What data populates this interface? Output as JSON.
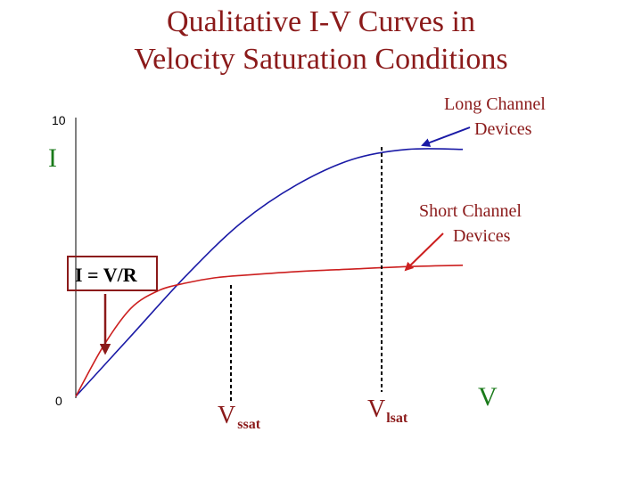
{
  "title_line1": "Qualitative I-V Curves in",
  "title_line2": "Velocity Saturation Conditions",
  "colors": {
    "title": "#8b1a1a",
    "long_channel": "#1a1aa6",
    "short_channel": "#cc1f1f",
    "axis_letters": "#1a7a1a",
    "ohmic_box": "#8b1a1a",
    "vsat_labels": "#8b1a1a"
  },
  "chart_data": {
    "type": "line",
    "title": "Qualitative I-V Curves in Velocity Saturation Conditions",
    "xlabel": "V",
    "ylabel": "I",
    "yticks": [
      "10",
      "0"
    ],
    "grid": false,
    "series": [
      {
        "name": "Long Channel Devices",
        "x": [
          0,
          2,
          4,
          6,
          8,
          10,
          12,
          14
        ],
        "y": [
          0,
          2.4,
          4.8,
          6.9,
          8.4,
          9.4,
          9.8,
          9.8
        ]
      },
      {
        "name": "Short Channel Devices",
        "x": [
          0,
          1,
          2,
          3,
          4,
          5,
          6,
          8,
          10,
          12,
          14
        ],
        "y": [
          0,
          2.0,
          3.5,
          4.2,
          4.5,
          4.7,
          4.8,
          4.95,
          5.05,
          5.15,
          5.2
        ]
      }
    ],
    "annotations": [
      {
        "text": "Long Channel",
        "text2": "Devices"
      },
      {
        "text": "Short Channel",
        "text2": "Devices"
      },
      {
        "text": "I = V/R"
      },
      {
        "text": "V",
        "sub": "ssat"
      },
      {
        "text": "V",
        "sub": "lsat"
      }
    ]
  }
}
